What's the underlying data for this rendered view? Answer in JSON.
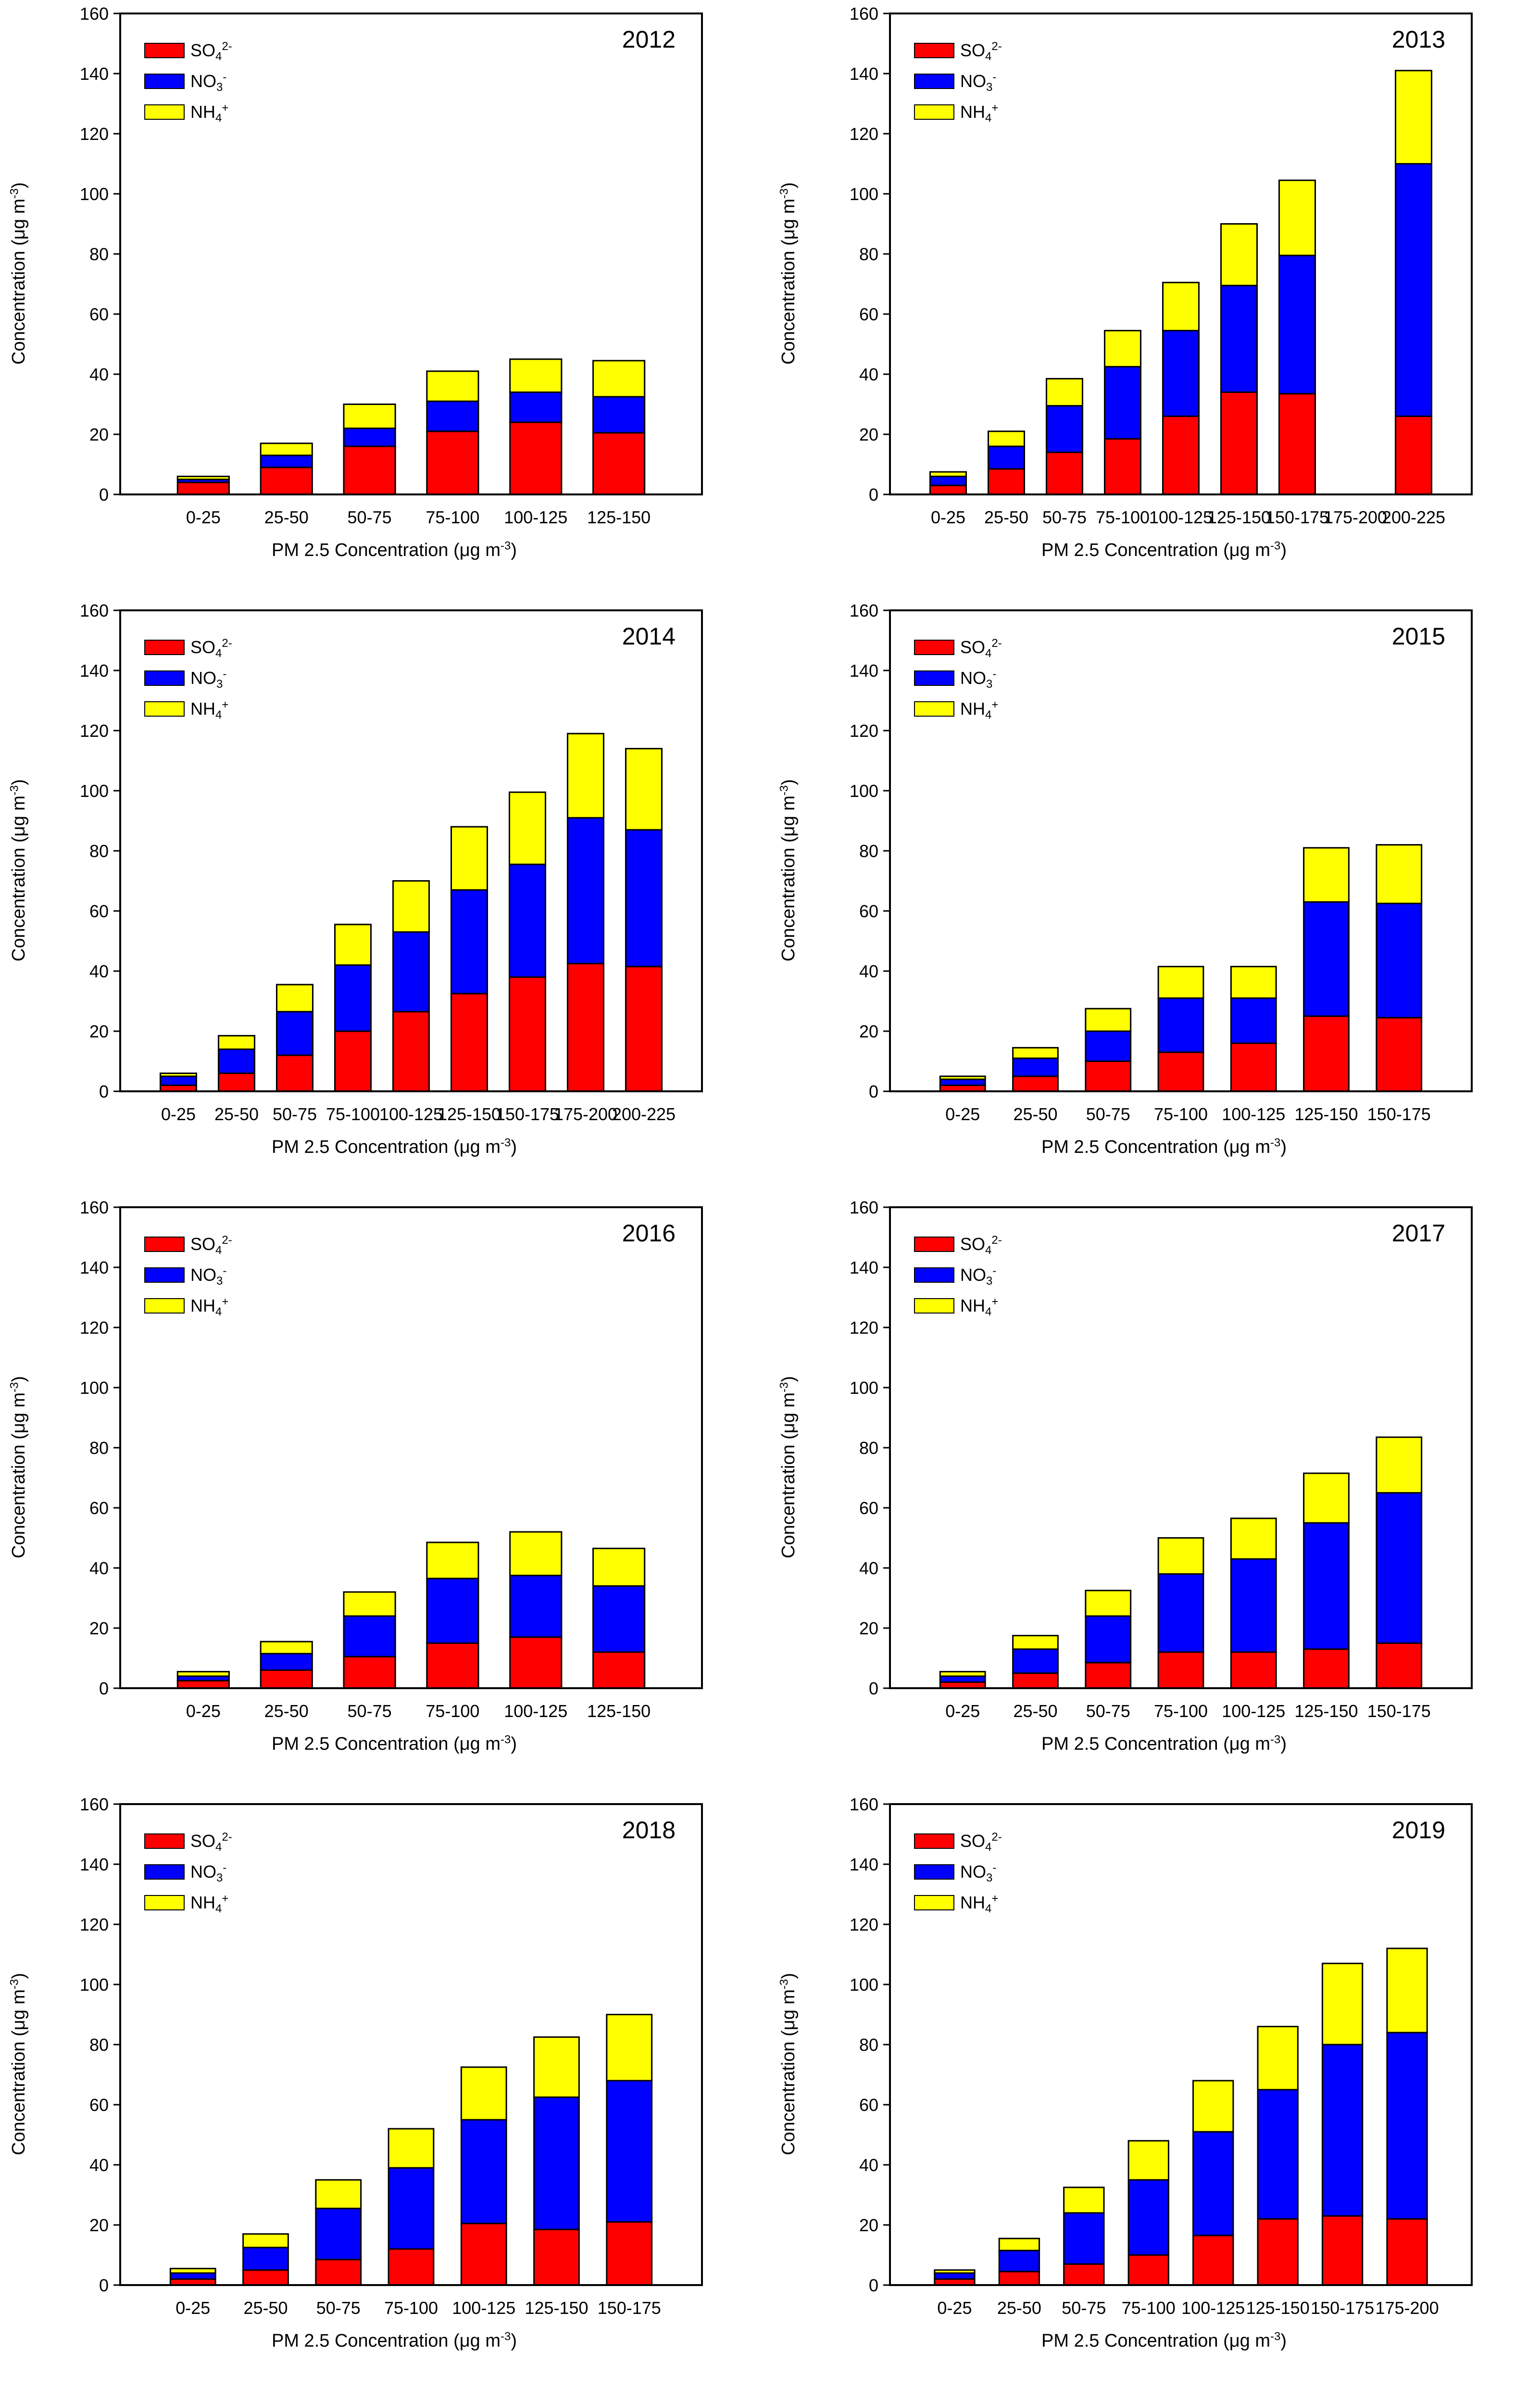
{
  "labels": {
    "y_axis": "Concentration (μg m",
    "y_axis_sup": "-3",
    "y_axis_end": ")",
    "x_axis": "PM 2.5 Concentration (μg m",
    "x_axis_sup": "-3",
    "x_axis_end": ")"
  },
  "legend": [
    {
      "base": "SO",
      "sub": "4",
      "sup": "2-",
      "color": "#ff0000"
    },
    {
      "base": "NO",
      "sub": "3",
      "sup": "-",
      "color": "#0000ff"
    },
    {
      "base": "NH",
      "sub": "4",
      "sup": "+",
      "color": "#ffff00"
    }
  ],
  "chart_data": [
    {
      "type": "bar",
      "stacked": true,
      "title": "2012",
      "ylim": [
        0,
        160
      ],
      "yticks": [
        0,
        20,
        40,
        60,
        80,
        100,
        120,
        140,
        160
      ],
      "categories": [
        "0-25",
        "25-50",
        "50-75",
        "75-100",
        "100-125",
        "125-150"
      ],
      "series": [
        {
          "name": "SO4 2-",
          "values": [
            4,
            9,
            16,
            21,
            24,
            20.5
          ]
        },
        {
          "name": "NO3 -",
          "values": [
            1,
            4,
            6,
            10,
            10,
            12
          ]
        },
        {
          "name": "NH4 +",
          "values": [
            1,
            4,
            8,
            10,
            11,
            12
          ]
        }
      ]
    },
    {
      "type": "bar",
      "stacked": true,
      "title": "2013",
      "ylim": [
        0,
        160
      ],
      "yticks": [
        0,
        20,
        40,
        60,
        80,
        100,
        120,
        140,
        160
      ],
      "categories": [
        "0-25",
        "25-50",
        "50-75",
        "75-100",
        "100-125",
        "125-150",
        "150-175",
        "175-200",
        "200-225"
      ],
      "series": [
        {
          "name": "SO4 2-",
          "values": [
            3,
            8.5,
            14,
            18.5,
            26,
            34,
            33.5,
            0,
            26
          ]
        },
        {
          "name": "NO3 -",
          "values": [
            3,
            7.5,
            15.5,
            24,
            28.5,
            35.5,
            46,
            0,
            84
          ]
        },
        {
          "name": "NH4 +",
          "values": [
            1.5,
            5,
            9,
            12,
            16,
            20.5,
            25,
            0,
            31
          ]
        }
      ]
    },
    {
      "type": "bar",
      "stacked": true,
      "title": "2014",
      "ylim": [
        0,
        160
      ],
      "yticks": [
        0,
        20,
        40,
        60,
        80,
        100,
        120,
        140,
        160
      ],
      "categories": [
        "0-25",
        "25-50",
        "50-75",
        "75-100",
        "100-125",
        "125-150",
        "150-175",
        "175-200",
        "200-225"
      ],
      "series": [
        {
          "name": "SO4 2-",
          "values": [
            2,
            6,
            12,
            20,
            26.5,
            32.5,
            38,
            42.5,
            41.5
          ]
        },
        {
          "name": "NO3 -",
          "values": [
            3,
            8,
            14.5,
            22,
            26.5,
            34.5,
            37.5,
            48.5,
            45.5
          ]
        },
        {
          "name": "NH4 +",
          "values": [
            1,
            4.5,
            9,
            13.5,
            17,
            21,
            24,
            28,
            27
          ]
        }
      ]
    },
    {
      "type": "bar",
      "stacked": true,
      "title": "2015",
      "ylim": [
        0,
        160
      ],
      "yticks": [
        0,
        20,
        40,
        60,
        80,
        100,
        120,
        140,
        160
      ],
      "categories": [
        "0-25",
        "25-50",
        "50-75",
        "75-100",
        "100-125",
        "125-150",
        "150-175"
      ],
      "series": [
        {
          "name": "SO4 2-",
          "values": [
            2,
            5,
            10,
            13,
            16,
            25,
            24.5
          ]
        },
        {
          "name": "NO3 -",
          "values": [
            2,
            6,
            10,
            18,
            15,
            38,
            38
          ]
        },
        {
          "name": "NH4 +",
          "values": [
            1,
            3.5,
            7.5,
            10.5,
            10.5,
            18,
            19.5
          ]
        }
      ]
    },
    {
      "type": "bar",
      "stacked": true,
      "title": "2016",
      "ylim": [
        0,
        160
      ],
      "yticks": [
        0,
        20,
        40,
        60,
        80,
        100,
        120,
        140,
        160
      ],
      "categories": [
        "0-25",
        "25-50",
        "50-75",
        "75-100",
        "100-125",
        "125-150"
      ],
      "series": [
        {
          "name": "SO4 2-",
          "values": [
            2.5,
            6,
            10.5,
            15,
            17,
            12
          ]
        },
        {
          "name": "NO3 -",
          "values": [
            1.5,
            5.5,
            13.5,
            21.5,
            20.5,
            22
          ]
        },
        {
          "name": "NH4 +",
          "values": [
            1.5,
            4,
            8,
            12,
            14.5,
            12.5
          ]
        }
      ]
    },
    {
      "type": "bar",
      "stacked": true,
      "title": "2017",
      "ylim": [
        0,
        160
      ],
      "yticks": [
        0,
        20,
        40,
        60,
        80,
        100,
        120,
        140,
        160
      ],
      "categories": [
        "0-25",
        "25-50",
        "50-75",
        "75-100",
        "100-125",
        "125-150",
        "150-175"
      ],
      "series": [
        {
          "name": "SO4 2-",
          "values": [
            2,
            5,
            8.5,
            12,
            12,
            13,
            15
          ]
        },
        {
          "name": "NO3 -",
          "values": [
            2,
            8,
            15.5,
            26,
            31,
            42,
            50
          ]
        },
        {
          "name": "NH4 +",
          "values": [
            1.5,
            4.5,
            8.5,
            12,
            13.5,
            16.5,
            18.5
          ]
        }
      ]
    },
    {
      "type": "bar",
      "stacked": true,
      "title": "2018",
      "ylim": [
        0,
        160
      ],
      "yticks": [
        0,
        20,
        40,
        60,
        80,
        100,
        120,
        140,
        160
      ],
      "categories": [
        "0-25",
        "25-50",
        "50-75",
        "75-100",
        "100-125",
        "125-150",
        "150-175"
      ],
      "series": [
        {
          "name": "SO4 2-",
          "values": [
            2,
            5,
            8.5,
            12,
            20.5,
            18.5,
            21
          ]
        },
        {
          "name": "NO3 -",
          "values": [
            2,
            7.5,
            17,
            27,
            34.5,
            44,
            47
          ]
        },
        {
          "name": "NH4 +",
          "values": [
            1.5,
            4.5,
            9.5,
            13,
            17.5,
            20,
            22
          ]
        }
      ]
    },
    {
      "type": "bar",
      "stacked": true,
      "title": "2019",
      "ylim": [
        0,
        160
      ],
      "yticks": [
        0,
        20,
        40,
        60,
        80,
        100,
        120,
        140,
        160
      ],
      "categories": [
        "0-25",
        "25-50",
        "50-75",
        "75-100",
        "100-125",
        "125-150",
        "150-175",
        "175-200"
      ],
      "series": [
        {
          "name": "SO4 2-",
          "values": [
            2,
            4.5,
            7,
            10,
            16.5,
            22,
            23,
            22
          ]
        },
        {
          "name": "NO3 -",
          "values": [
            2,
            7,
            17,
            25,
            34.5,
            43,
            57,
            62
          ]
        },
        {
          "name": "NH4 +",
          "values": [
            1,
            4,
            8.5,
            13,
            17,
            21,
            27,
            28
          ]
        }
      ]
    }
  ]
}
